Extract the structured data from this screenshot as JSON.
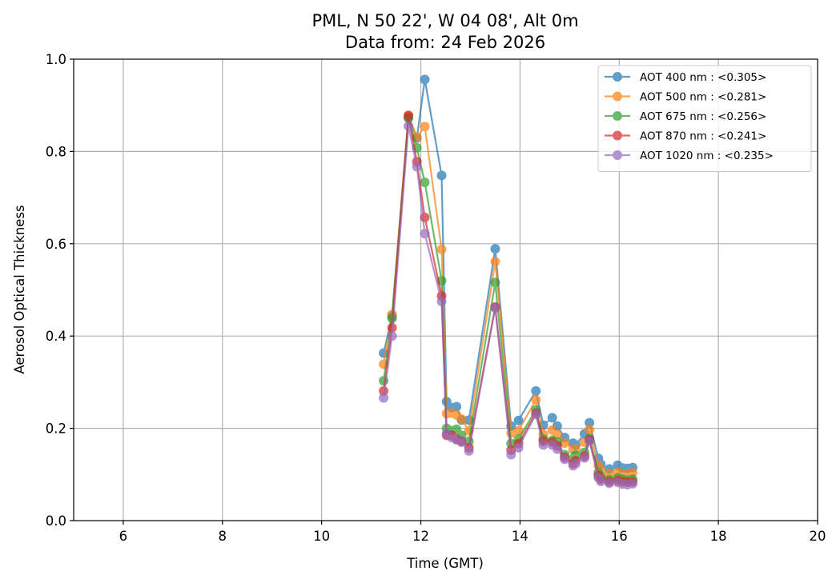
{
  "chart_data": {
    "type": "line",
    "title": "PML, N 50 22', W 04 08', Alt 0m",
    "subtitle": "Data from: 24 Feb 2026",
    "xlabel": "Time (GMT)",
    "ylabel": "Aerosol Optical Thickness",
    "xlim": [
      5,
      20
    ],
    "ylim": [
      0,
      1.0
    ],
    "xticks": [
      6,
      8,
      10,
      12,
      14,
      16,
      18,
      20
    ],
    "xtick_labels": [
      "6",
      "8",
      "10",
      "12",
      "14",
      "16",
      "18",
      "20"
    ],
    "yticks": [
      0,
      0.2,
      0.4,
      0.6,
      0.8,
      1.0
    ],
    "ytick_labels": [
      "0.0",
      "0.2",
      "0.4",
      "0.6",
      "0.8",
      "1.0"
    ],
    "grid": true,
    "legend_position": "top-right",
    "x": [
      11.25,
      11.42,
      11.75,
      11.92,
      12.08,
      12.42,
      12.52,
      12.62,
      12.72,
      12.82,
      12.97,
      13.5,
      13.82,
      13.97,
      14.32,
      14.47,
      14.65,
      14.75,
      14.9,
      15.07,
      15.12,
      15.3,
      15.4,
      15.58,
      15.63,
      15.8,
      15.97,
      16.07,
      16.17,
      16.27
    ],
    "series": [
      {
        "name": "AOT 400 nm : <0.305>",
        "color": "#1f77b4",
        "values": [
          0.363,
          0.443,
          0.874,
          0.829,
          0.956,
          0.748,
          0.258,
          0.245,
          0.247,
          0.218,
          0.218,
          0.589,
          0.205,
          0.217,
          0.281,
          0.207,
          0.223,
          0.205,
          0.18,
          0.168,
          0.164,
          0.188,
          0.212,
          0.135,
          0.122,
          0.112,
          0.12,
          0.114,
          0.113,
          0.115
        ]
      },
      {
        "name": "AOT 500 nm : <0.281>",
        "color": "#ff7f0e",
        "values": [
          0.339,
          0.447,
          0.878,
          0.831,
          0.854,
          0.588,
          0.232,
          0.233,
          0.229,
          0.22,
          0.195,
          0.561,
          0.19,
          0.195,
          0.262,
          0.187,
          0.196,
          0.187,
          0.168,
          0.154,
          0.155,
          0.17,
          0.197,
          0.119,
          0.11,
          0.101,
          0.106,
          0.1,
          0.101,
          0.104
        ]
      },
      {
        "name": "AOT 675 nm : <0.256>",
        "color": "#2ca02c",
        "values": [
          0.303,
          0.438,
          0.872,
          0.808,
          0.733,
          0.52,
          0.2,
          0.195,
          0.198,
          0.185,
          0.172,
          0.516,
          0.167,
          0.177,
          0.24,
          0.177,
          0.174,
          0.17,
          0.143,
          0.134,
          0.142,
          0.148,
          0.178,
          0.104,
          0.096,
          0.089,
          0.093,
          0.09,
          0.088,
          0.09
        ]
      },
      {
        "name": "AOT 870 nm : <0.241>",
        "color": "#d62728",
        "values": [
          0.281,
          0.418,
          0.878,
          0.778,
          0.657,
          0.487,
          0.185,
          0.185,
          0.177,
          0.172,
          0.158,
          0.463,
          0.153,
          0.167,
          0.233,
          0.172,
          0.17,
          0.162,
          0.137,
          0.124,
          0.13,
          0.14,
          0.175,
          0.098,
          0.09,
          0.084,
          0.087,
          0.084,
          0.083,
          0.084
        ]
      },
      {
        "name": "AOT 1020 nm : <0.235>",
        "color": "#9467bd",
        "values": [
          0.266,
          0.4,
          0.855,
          0.767,
          0.622,
          0.475,
          0.188,
          0.18,
          0.175,
          0.17,
          0.151,
          0.461,
          0.143,
          0.158,
          0.23,
          0.164,
          0.164,
          0.155,
          0.133,
          0.119,
          0.123,
          0.136,
          0.172,
          0.093,
          0.085,
          0.081,
          0.083,
          0.079,
          0.078,
          0.08
        ]
      }
    ]
  }
}
